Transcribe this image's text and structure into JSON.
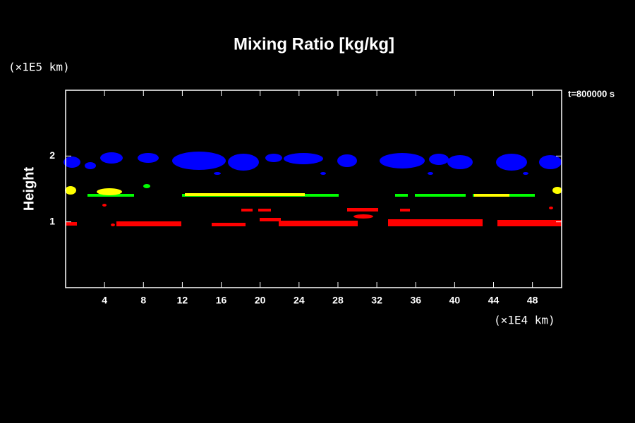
{
  "chart_data": {
    "type": "field",
    "title": "Mixing Ratio [kg/kg]",
    "time_label": "t=800000 s",
    "ylabel": "Height",
    "yunit": "(×1E5 km)",
    "xunit": "(×1E4 km)",
    "xlim": [
      0,
      51
    ],
    "ylim": [
      0,
      3
    ],
    "xticks": [
      4,
      8,
      12,
      16,
      20,
      24,
      28,
      32,
      36,
      40,
      44,
      48
    ],
    "yticks": [
      1,
      2
    ]
  }
}
